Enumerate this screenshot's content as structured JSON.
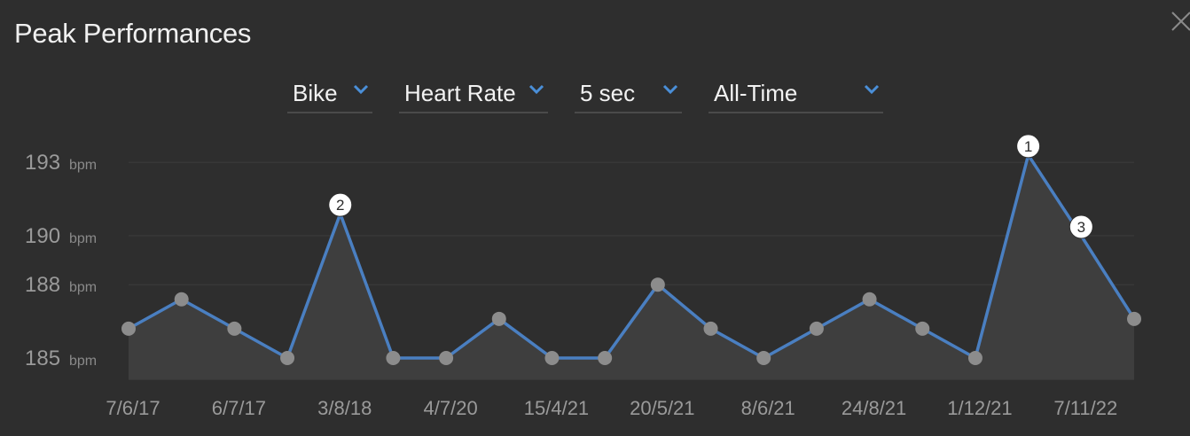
{
  "title": "Peak Performances",
  "icons": {
    "close": "close-icon",
    "chevron": "chevron-down-icon"
  },
  "filters": [
    {
      "label": "Bike"
    },
    {
      "label": "Heart Rate"
    },
    {
      "label": "5 sec"
    },
    {
      "label": "All-Time"
    }
  ],
  "colors": {
    "background": "#2e2e2e",
    "line": "#4a7fc1",
    "point": "#8c8c8c",
    "area": "#3e3e3e",
    "rank_badge": "#ffffff"
  },
  "chart_data": {
    "type": "area",
    "unit": "bpm",
    "ylim": [
      184,
      194
    ],
    "yticks": [
      185,
      188,
      190,
      193
    ],
    "grid": true,
    "x_tick_labels": [
      "7/6/17",
      "6/7/17",
      "3/8/18",
      "4/7/20",
      "15/4/21",
      "20/5/21",
      "8/6/21",
      "24/8/21",
      "1/12/21",
      "7/11/22"
    ],
    "series": [
      {
        "values": [
          186.2,
          187.4,
          186.2,
          185.0,
          190.9,
          185.0,
          185.0,
          186.6,
          185.0,
          185.0,
          188.0,
          186.2,
          185.0,
          186.2,
          187.4,
          186.2,
          185.0,
          193.3,
          190.0,
          186.6
        ]
      }
    ],
    "ranked_points": [
      {
        "index": 17,
        "rank": "1"
      },
      {
        "index": 4,
        "rank": "2"
      },
      {
        "index": 18,
        "rank": "3"
      }
    ]
  }
}
